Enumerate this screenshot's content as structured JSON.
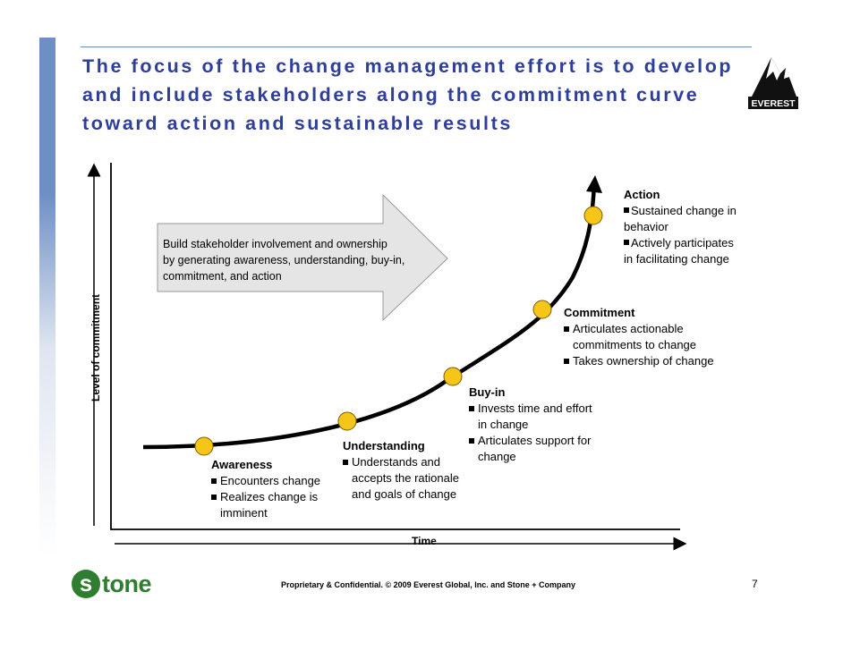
{
  "title": {
    "lines": [
      "The focus of the change management effort is to develop",
      "and include stakeholders along the commitment curve",
      "toward action and sustainable results"
    ]
  },
  "logo": {
    "text": "EVEREST"
  },
  "arrow": {
    "lines": [
      "Build stakeholder involvement and ownership",
      "by generating awareness, understanding, buy-in,",
      "commitment, and action"
    ]
  },
  "axes": {
    "y_label": "Level of commitment",
    "x_label": "Time"
  },
  "stages": {
    "awareness": {
      "name": "Awareness",
      "item1": "Encounters change",
      "item2a": "Realizes change is",
      "item2b": "imminent"
    },
    "understanding": {
      "name": "Understanding",
      "item1a": "Understands and",
      "item1b": "accepts the rationale",
      "item1c": "and goals of change"
    },
    "buyin": {
      "name": "Buy-in",
      "item1a": "Invests time and effort",
      "item1b": "in change",
      "item2a": "Articulates support for",
      "item2b": "change"
    },
    "commitment": {
      "name": "Commitment",
      "item1a": "Articulates actionable",
      "item1b": "commitments to change",
      "item2": "Takes ownership of change"
    },
    "action": {
      "name": "Action",
      "item1a": "Sustained change in",
      "item1b": "behavior",
      "item2a": "Actively participates",
      "item2b": "in facilitating change"
    }
  },
  "footer": {
    "text": "Proprietary & Confidential. © 2009 Everest Global, Inc. and Stone + Company",
    "page": "7"
  },
  "brand": {
    "s": "s",
    "rest": "tone"
  },
  "colors": {
    "title": "#2d3e9b",
    "node": "#f5c518",
    "arrow_fill": "#e5e5e5",
    "stone_green": "#2f7d2f"
  }
}
